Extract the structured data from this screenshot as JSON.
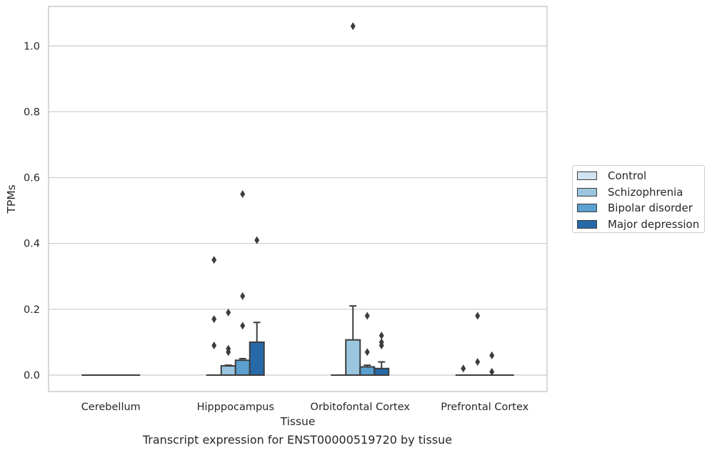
{
  "caption": "Transcript expression for ENST00000519720 by tissue",
  "chart_data": {
    "type": "box",
    "xlabel": "Tissue",
    "ylabel": "TPMs",
    "ylim": [
      -0.05,
      1.12
    ],
    "yticks": [
      0.0,
      0.2,
      0.4,
      0.6,
      0.8,
      1.0
    ],
    "ytick_labels": [
      "0.0",
      "0.2",
      "0.4",
      "0.6",
      "0.8",
      "1.0"
    ],
    "grid": "horizontal",
    "legend_position": "right",
    "categories": [
      "Cerebellum",
      "Hipppocampus",
      "Orbitofontal Cortex",
      "Prefrontal Cortex"
    ],
    "series": [
      {
        "name": "Control",
        "color": "#d1e2f2",
        "boxes": [
          {
            "q1": 0,
            "median": 0,
            "q3": 0,
            "whisker_low": 0,
            "whisker_high": 0,
            "outliers": []
          },
          {
            "q1": 0,
            "median": 0,
            "q3": 0,
            "whisker_low": 0,
            "whisker_high": 0,
            "outliers": [
              0.35,
              0.17,
              0.09
            ]
          },
          {
            "q1": 0,
            "median": 0,
            "q3": 0,
            "whisker_low": 0,
            "whisker_high": 0,
            "outliers": []
          },
          {
            "q1": 0,
            "median": 0,
            "q3": 0,
            "whisker_low": 0,
            "whisker_high": 0,
            "outliers": [
              0.02
            ]
          }
        ]
      },
      {
        "name": "Schizophrenia",
        "color": "#9ac6df",
        "boxes": [
          {
            "q1": 0,
            "median": 0,
            "q3": 0,
            "whisker_low": 0,
            "whisker_high": 0,
            "outliers": []
          },
          {
            "q1": 0,
            "median": 0,
            "q3": 0.028,
            "whisker_low": 0,
            "whisker_high": 0.03,
            "outliers": [
              0.19,
              0.08,
              0.07
            ]
          },
          {
            "q1": 0,
            "median": 0,
            "q3": 0.107,
            "whisker_low": 0,
            "whisker_high": 0.21,
            "outliers": [
              1.06
            ]
          },
          {
            "q1": 0,
            "median": 0,
            "q3": 0,
            "whisker_low": 0,
            "whisker_high": 0,
            "outliers": [
              0.18,
              0.04
            ]
          }
        ]
      },
      {
        "name": "Bipolar disorder",
        "color": "#5a9fcf",
        "boxes": [
          {
            "q1": 0,
            "median": 0,
            "q3": 0,
            "whisker_low": 0,
            "whisker_high": 0,
            "outliers": []
          },
          {
            "q1": 0,
            "median": 0,
            "q3": 0.045,
            "whisker_low": 0,
            "whisker_high": 0.05,
            "outliers": [
              0.55,
              0.24,
              0.15
            ]
          },
          {
            "q1": 0,
            "median": 0,
            "q3": 0.025,
            "whisker_low": 0,
            "whisker_high": 0.03,
            "outliers": [
              0.18,
              0.07
            ]
          },
          {
            "q1": 0,
            "median": 0,
            "q3": 0,
            "whisker_low": 0,
            "whisker_high": 0,
            "outliers": [
              0.06,
              0.01
            ]
          }
        ]
      },
      {
        "name": "Major depression",
        "color": "#2669a9",
        "boxes": [
          {
            "q1": 0,
            "median": 0,
            "q3": 0,
            "whisker_low": 0,
            "whisker_high": 0,
            "outliers": []
          },
          {
            "q1": 0,
            "median": 0,
            "q3": 0.1,
            "whisker_low": 0,
            "whisker_high": 0.16,
            "outliers": [
              0.41
            ]
          },
          {
            "q1": 0,
            "median": 0,
            "q3": 0.02,
            "whisker_low": 0,
            "whisker_high": 0.04,
            "outliers": [
              0.12,
              0.1,
              0.09
            ]
          },
          {
            "q1": 0,
            "median": 0,
            "q3": 0,
            "whisker_low": 0,
            "whisker_high": 0,
            "outliers": []
          }
        ]
      }
    ]
  }
}
